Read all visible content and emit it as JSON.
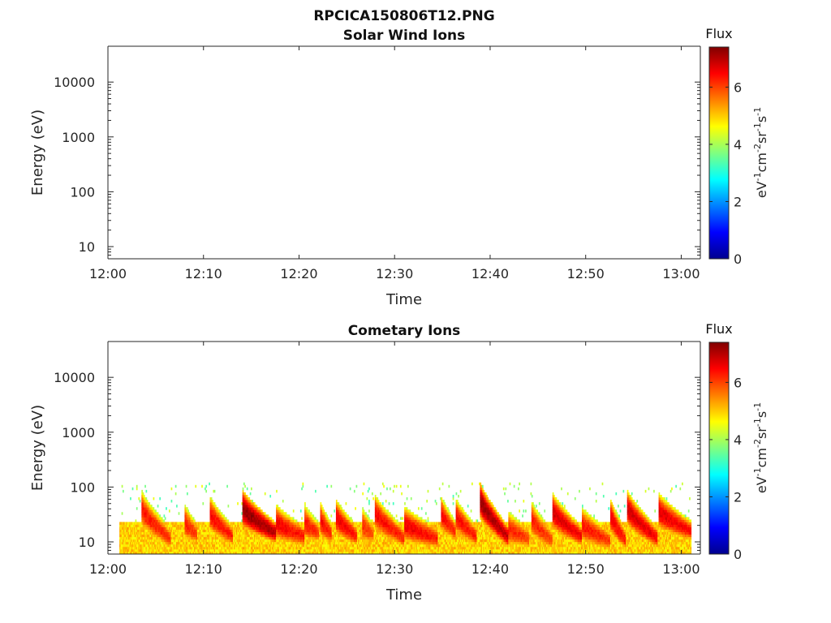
{
  "figure": {
    "title": "RPCICA150806T12.PNG"
  },
  "chart_data": [
    {
      "type": "heatmap",
      "title": "Solar Wind Ions",
      "xlabel": "Time",
      "ylabel": "Energy (eV)",
      "x_ticks": [
        "12:00",
        "12:10",
        "12:20",
        "12:30",
        "12:40",
        "12:50",
        "13:00"
      ],
      "y_ticks": [
        "10",
        "100",
        "1000",
        "10000"
      ],
      "y_scale": "log",
      "ylim": [
        6,
        45000
      ],
      "xlim_minutes": [
        0,
        62
      ],
      "colorbar": {
        "title": "Flux",
        "label": "eV⁻¹cm⁻²sr⁻¹s⁻¹",
        "ticks": [
          "0",
          "2",
          "4",
          "6"
        ],
        "range": [
          0,
          7.4
        ],
        "colormap": "jet"
      },
      "data": []
    },
    {
      "type": "heatmap",
      "title": "Cometary Ions",
      "xlabel": "Time",
      "ylabel": "Energy (eV)",
      "x_ticks": [
        "12:00",
        "12:10",
        "12:20",
        "12:30",
        "12:40",
        "12:50",
        "13:00"
      ],
      "y_ticks": [
        "10",
        "100",
        "1000",
        "10000"
      ],
      "y_scale": "log",
      "ylim": [
        6,
        45000
      ],
      "xlim_minutes": [
        0,
        62
      ],
      "colorbar": {
        "title": "Flux",
        "label": "eV⁻¹cm⁻²sr⁻¹s⁻¹",
        "ticks": [
          "0",
          "2",
          "4",
          "6"
        ],
        "range": [
          0,
          7.4
        ],
        "colormap": "jet"
      },
      "data_coverage_minutes": [
        1.2,
        61.0
      ],
      "background_band_eV": [
        6,
        22
      ],
      "background_level": 5.0,
      "sweeps": [
        {
          "start_min": 3.5,
          "end_min": 6.5,
          "peak_eV": 38,
          "end_eV": 11,
          "level": 6.4
        },
        {
          "start_min": 8.0,
          "end_min": 9.3,
          "peak_eV": 22,
          "end_eV": 13,
          "level": 6.3
        },
        {
          "start_min": 10.6,
          "end_min": 13.0,
          "peak_eV": 32,
          "end_eV": 12,
          "level": 6.5
        },
        {
          "start_min": 14.0,
          "end_min": 17.5,
          "peak_eV": 40,
          "end_eV": 14,
          "level": 7.3
        },
        {
          "start_min": 17.5,
          "end_min": 20.5,
          "peak_eV": 22,
          "end_eV": 12,
          "level": 6.6
        },
        {
          "start_min": 20.5,
          "end_min": 22.0,
          "peak_eV": 22,
          "end_eV": 14,
          "level": 6.4
        },
        {
          "start_min": 22.2,
          "end_min": 23.4,
          "peak_eV": 24,
          "end_eV": 13,
          "level": 6.5
        },
        {
          "start_min": 23.8,
          "end_min": 26.0,
          "peak_eV": 28,
          "end_eV": 12,
          "level": 6.6
        },
        {
          "start_min": 26.5,
          "end_min": 27.8,
          "peak_eV": 20,
          "end_eV": 13,
          "level": 6.2
        },
        {
          "start_min": 27.9,
          "end_min": 31.0,
          "peak_eV": 33,
          "end_eV": 11,
          "level": 6.5
        },
        {
          "start_min": 31.0,
          "end_min": 34.5,
          "peak_eV": 20,
          "end_eV": 11,
          "level": 6.6
        },
        {
          "start_min": 34.8,
          "end_min": 36.3,
          "peak_eV": 32,
          "end_eV": 15,
          "level": 6.5
        },
        {
          "start_min": 36.3,
          "end_min": 38.5,
          "peak_eV": 30,
          "end_eV": 12,
          "level": 6.5
        },
        {
          "start_min": 38.9,
          "end_min": 41.8,
          "peak_eV": 55,
          "end_eV": 12,
          "level": 7.2
        },
        {
          "start_min": 41.8,
          "end_min": 44.0,
          "peak_eV": 17,
          "end_eV": 11,
          "level": 6.3
        },
        {
          "start_min": 44.3,
          "end_min": 46.5,
          "peak_eV": 25,
          "end_eV": 10,
          "level": 6.3
        },
        {
          "start_min": 46.5,
          "end_min": 49.5,
          "peak_eV": 35,
          "end_eV": 12,
          "level": 6.8
        },
        {
          "start_min": 49.5,
          "end_min": 52.5,
          "peak_eV": 20,
          "end_eV": 10,
          "level": 6.4
        },
        {
          "start_min": 52.5,
          "end_min": 54.2,
          "peak_eV": 30,
          "end_eV": 10,
          "level": 6.6
        },
        {
          "start_min": 54.3,
          "end_min": 57.5,
          "peak_eV": 40,
          "end_eV": 11,
          "level": 6.8
        },
        {
          "start_min": 57.6,
          "end_min": 61.0,
          "peak_eV": 35,
          "end_eV": 15,
          "level": 6.7
        }
      ]
    }
  ]
}
